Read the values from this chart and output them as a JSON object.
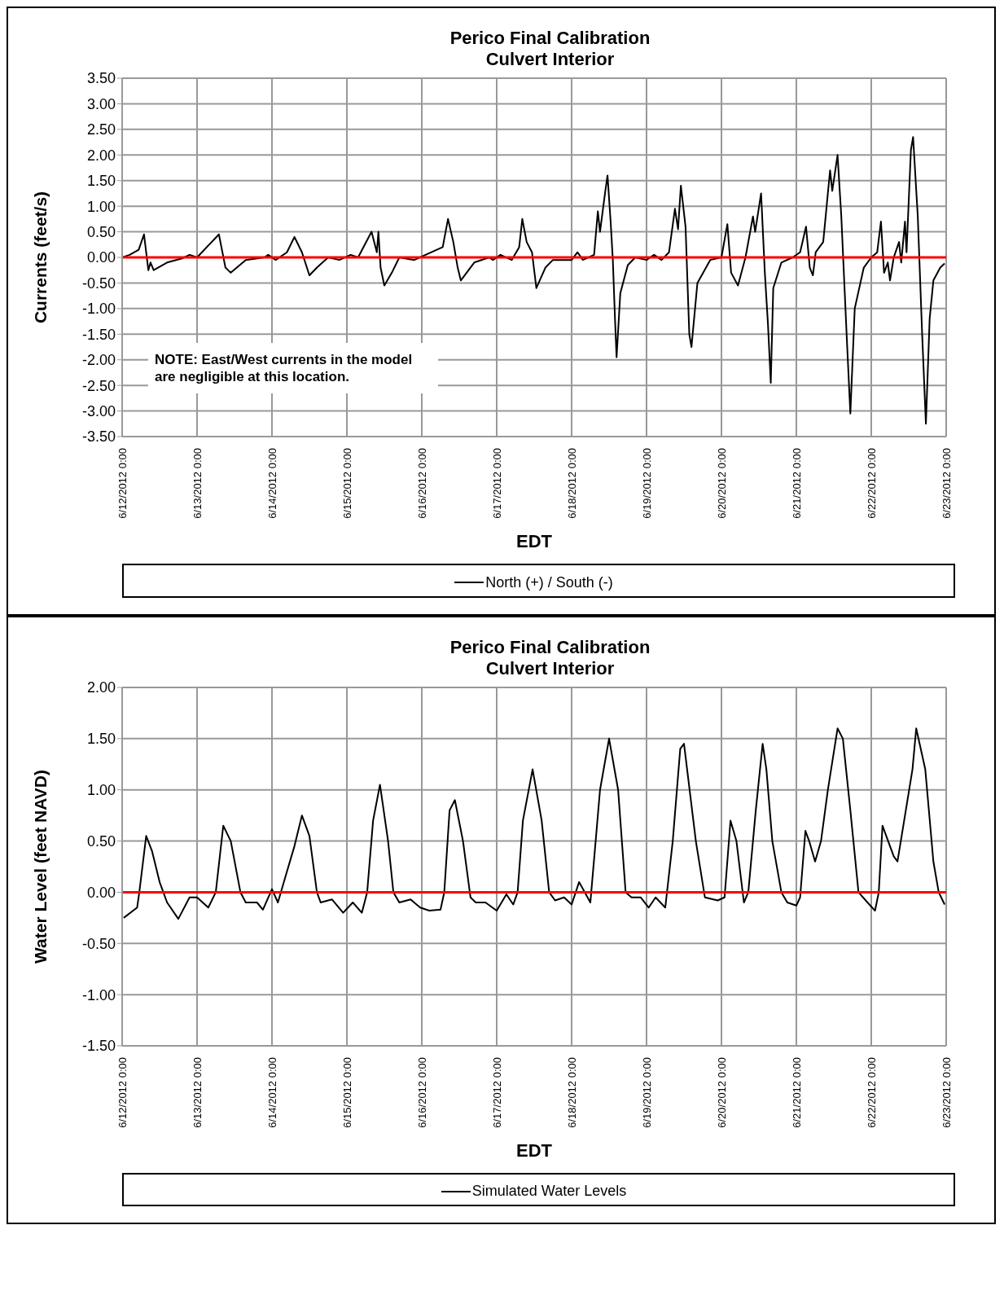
{
  "chart_data": [
    {
      "type": "line",
      "title": "Perico Final Calibration",
      "subtitle": "Culvert Interior",
      "xlabel": "EDT",
      "ylabel": "Currents (feet/s)",
      "annotations": [
        "NOTE:  East/West currents in the model are negligible at this location."
      ],
      "xlim": [
        "2012-06-12T00:00",
        "2012-06-23T00:00"
      ],
      "xticks": [
        {
          "value": "2012-06-12T00:00",
          "label": "6/12/2012 0:00"
        },
        {
          "value": "2012-06-13T00:00",
          "label": "6/13/2012 0:00"
        },
        {
          "value": "2012-06-14T00:00",
          "label": "6/14/2012 0:00"
        },
        {
          "value": "2012-06-15T00:00",
          "label": "6/15/2012 0:00"
        },
        {
          "value": "2012-06-16T00:00",
          "label": "6/16/2012 0:00"
        },
        {
          "value": "2012-06-17T00:00",
          "label": "6/17/2012 0:00"
        },
        {
          "value": "2012-06-18T00:00",
          "label": "6/18/2012 0:00"
        },
        {
          "value": "2012-06-19T00:00",
          "label": "6/19/2012 0:00"
        },
        {
          "value": "2012-06-20T00:00",
          "label": "6/20/2012 0:00"
        },
        {
          "value": "2012-06-21T00:00",
          "label": "6/21/2012 0:00"
        },
        {
          "value": "2012-06-22T00:00",
          "label": "6/22/2012 0:00"
        },
        {
          "value": "2012-06-23T00:00",
          "label": "6/23/2012 0:00"
        }
      ],
      "ylim": [
        -3.5,
        3.5
      ],
      "yticks": [
        {
          "value": 3.5,
          "label": "3.50"
        },
        {
          "value": 3,
          "label": "3.00"
        },
        {
          "value": 2.5,
          "label": "2.50"
        },
        {
          "value": 2,
          "label": "2.00"
        },
        {
          "value": 1.5,
          "label": "1.50"
        },
        {
          "value": 1,
          "label": "1.00"
        },
        {
          "value": 0.5,
          "label": "0.50"
        },
        {
          "value": 0,
          "label": "0.00"
        },
        {
          "value": -0.5,
          "label": "-0.50"
        },
        {
          "value": -1,
          "label": "-1.00"
        },
        {
          "value": -1.5,
          "label": "-1.50"
        },
        {
          "value": -2,
          "label": "-2.00"
        },
        {
          "value": -2.5,
          "label": "-2.50"
        },
        {
          "value": -3,
          "label": "-3.00"
        },
        {
          "value": -3.5,
          "label": "-3.50"
        }
      ],
      "grid": true,
      "legend": "bottom",
      "marker": "none",
      "line_style": "solid",
      "ref_lines": [
        {
          "axis": "y",
          "value": 0,
          "color": "#ff0000"
        }
      ],
      "series": [
        {
          "name": "North (+) / South (-)",
          "color": "#000000",
          "x": [
            "2012-06-12T00:00",
            "2012-06-12T02:24",
            "2012-06-12T05:18",
            "2012-06-12T07:00",
            "2012-06-12T08:24",
            "2012-06-12T09:06",
            "2012-06-12T10:06",
            "2012-06-12T14:24",
            "2012-06-12T19:12",
            "2012-06-12T21:36",
            "2012-06-13T00:00",
            "2012-06-13T07:00",
            "2012-06-13T09:06",
            "2012-06-13T10:48",
            "2012-06-13T15:36",
            "2012-06-13T21:36",
            "2012-06-13T22:48",
            "2012-06-14T01:12",
            "2012-06-14T04:48",
            "2012-06-14T07:12",
            "2012-06-14T09:36",
            "2012-06-14T12:00",
            "2012-06-14T14:24",
            "2012-06-14T18:00",
            "2012-06-14T21:36",
            "2012-06-15T01:12",
            "2012-06-15T03:36",
            "2012-06-15T07:54",
            "2012-06-15T09:36",
            "2012-06-15T10:06",
            "2012-06-15T10:48",
            "2012-06-15T12:00",
            "2012-06-15T14:24",
            "2012-06-15T16:48",
            "2012-06-15T21:36",
            "2012-06-16T01:12",
            "2012-06-16T06:42",
            "2012-06-16T08:24",
            "2012-06-16T10:06",
            "2012-06-16T11:30",
            "2012-06-16T12:30",
            "2012-06-16T16:48",
            "2012-06-16T21:36",
            "2012-06-16T22:48",
            "2012-06-17T01:12",
            "2012-06-17T04:48",
            "2012-06-17T07:12",
            "2012-06-17T08:12",
            "2012-06-17T09:36",
            "2012-06-17T11:18",
            "2012-06-17T12:42",
            "2012-06-17T15:36",
            "2012-06-17T18:00",
            "2012-06-18T00:00",
            "2012-06-18T01:54",
            "2012-06-18T03:36",
            "2012-06-18T07:12",
            "2012-06-18T08:24",
            "2012-06-18T09:06",
            "2012-06-18T10:48",
            "2012-06-18T11:30",
            "2012-06-18T12:30",
            "2012-06-18T13:12",
            "2012-06-18T13:54",
            "2012-06-18T14:24",
            "2012-06-18T15:36",
            "2012-06-18T18:00",
            "2012-06-18T20:24",
            "2012-06-19T00:00",
            "2012-06-19T02:24",
            "2012-06-19T04:48",
            "2012-06-19T07:12",
            "2012-06-19T09:06",
            "2012-06-19T10:06",
            "2012-06-19T11:00",
            "2012-06-19T12:30",
            "2012-06-19T13:42",
            "2012-06-19T14:24",
            "2012-06-19T16:18",
            "2012-06-19T20:24",
            "2012-06-20T00:00",
            "2012-06-20T01:54",
            "2012-06-20T03:06",
            "2012-06-20T05:18",
            "2012-06-20T07:42",
            "2012-06-20T10:06",
            "2012-06-20T10:48",
            "2012-06-20T12:42",
            "2012-06-20T13:54",
            "2012-06-20T14:54",
            "2012-06-20T15:48",
            "2012-06-20T16:36",
            "2012-06-20T19:12",
            "2012-06-20T22:48",
            "2012-06-21T01:12",
            "2012-06-21T03:06",
            "2012-06-21T04:18",
            "2012-06-21T05:18",
            "2012-06-21T06:12",
            "2012-06-21T08:36",
            "2012-06-21T10:48",
            "2012-06-21T11:30",
            "2012-06-21T13:12",
            "2012-06-21T14:24",
            "2012-06-21T16:06",
            "2012-06-21T17:18",
            "2012-06-21T18:42",
            "2012-06-21T21:36",
            "2012-06-22T00:00",
            "2012-06-22T01:54",
            "2012-06-22T03:06",
            "2012-06-22T04:06",
            "2012-06-22T05:18",
            "2012-06-22T06:00",
            "2012-06-22T07:12",
            "2012-06-22T08:54",
            "2012-06-22T09:36",
            "2012-06-22T10:48",
            "2012-06-22T11:18",
            "2012-06-22T12:42",
            "2012-06-22T13:24",
            "2012-06-22T14:54",
            "2012-06-22T16:18",
            "2012-06-22T17:30",
            "2012-06-22T18:42",
            "2012-06-22T19:54",
            "2012-06-22T22:06",
            "2012-06-22T23:30"
          ],
          "values": [
            0,
            0.05,
            0.15,
            0.45,
            -0.25,
            -0.1,
            -0.25,
            -0.1,
            -0.02,
            0.05,
            0,
            0.45,
            -0.2,
            -0.3,
            -0.05,
            0,
            0.05,
            -0.05,
            0.1,
            0.4,
            0.1,
            -0.35,
            -0.2,
            0,
            -0.05,
            0.05,
            0,
            0.5,
            0.1,
            0.5,
            -0.2,
            -0.55,
            -0.3,
            0,
            -0.05,
            0.05,
            0.2,
            0.75,
            0.3,
            -0.2,
            -0.45,
            -0.1,
            0,
            -0.05,
            0.05,
            -0.05,
            0.2,
            0.75,
            0.3,
            0.1,
            -0.6,
            -0.2,
            -0.05,
            -0.05,
            0.1,
            -0.05,
            0.05,
            0.9,
            0.5,
            1.3,
            1.6,
            0.7,
            -0.05,
            -1.2,
            -1.95,
            -0.7,
            -0.15,
            0,
            -0.05,
            0.05,
            -0.05,
            0.1,
            0.95,
            0.55,
            1.4,
            0.6,
            -1.5,
            -1.75,
            -0.5,
            -0.05,
            0,
            0.65,
            -0.3,
            -0.55,
            0,
            0.8,
            0.5,
            1.25,
            -0.3,
            -1.3,
            -2.45,
            -0.6,
            -0.1,
            0,
            0.1,
            0.6,
            -0.2,
            -0.35,
            0.1,
            0.3,
            1.7,
            1.3,
            2.0,
            0.8,
            -1.5,
            -3.05,
            -1.0,
            -0.2,
            0,
            0.1,
            0.7,
            -0.3,
            -0.1,
            -0.45,
            0,
            0.3,
            -0.1,
            0.7,
            0.1,
            2.1,
            2.35,
            0.8,
            -1.5,
            -3.25,
            -1.2,
            -0.45,
            -0.2,
            -0.12
          ]
        }
      ]
    },
    {
      "type": "line",
      "title": "Perico Final Calibration",
      "subtitle": "Culvert Interior",
      "xlabel": "EDT",
      "ylabel": "Water Level (feet NAVD)",
      "xlim": [
        "2012-06-12T00:00",
        "2012-06-23T00:00"
      ],
      "xticks": [
        {
          "value": "2012-06-12T00:00",
          "label": "6/12/2012 0:00"
        },
        {
          "value": "2012-06-13T00:00",
          "label": "6/13/2012 0:00"
        },
        {
          "value": "2012-06-14T00:00",
          "label": "6/14/2012 0:00"
        },
        {
          "value": "2012-06-15T00:00",
          "label": "6/15/2012 0:00"
        },
        {
          "value": "2012-06-16T00:00",
          "label": "6/16/2012 0:00"
        },
        {
          "value": "2012-06-17T00:00",
          "label": "6/17/2012 0:00"
        },
        {
          "value": "2012-06-18T00:00",
          "label": "6/18/2012 0:00"
        },
        {
          "value": "2012-06-19T00:00",
          "label": "6/19/2012 0:00"
        },
        {
          "value": "2012-06-20T00:00",
          "label": "6/20/2012 0:00"
        },
        {
          "value": "2012-06-21T00:00",
          "label": "6/21/2012 0:00"
        },
        {
          "value": "2012-06-22T00:00",
          "label": "6/22/2012 0:00"
        },
        {
          "value": "2012-06-23T00:00",
          "label": "6/23/2012 0:00"
        }
      ],
      "ylim": [
        -1.5,
        2
      ],
      "yticks": [
        {
          "value": 2,
          "label": "2.00"
        },
        {
          "value": 1.5,
          "label": "1.50"
        },
        {
          "value": 1,
          "label": "1.00"
        },
        {
          "value": 0.5,
          "label": "0.50"
        },
        {
          "value": 0,
          "label": "0.00"
        },
        {
          "value": -0.5,
          "label": "-0.50"
        },
        {
          "value": -1,
          "label": "-1.00"
        },
        {
          "value": -1.5,
          "label": "-1.50"
        }
      ],
      "grid": true,
      "legend": "bottom",
      "marker": "none",
      "line_style": "solid",
      "ref_lines": [
        {
          "axis": "y",
          "value": 0,
          "color": "#ff0000"
        }
      ],
      "series": [
        {
          "name": "Simulated Water Levels",
          "color": "#000000",
          "x": [
            "2012-06-12T00:30",
            "2012-06-12T04:48",
            "2012-06-12T05:30",
            "2012-06-12T07:42",
            "2012-06-12T09:36",
            "2012-06-12T12:00",
            "2012-06-12T14:24",
            "2012-06-12T18:00",
            "2012-06-12T21:36",
            "2012-06-13T00:00",
            "2012-06-13T03:36",
            "2012-06-13T06:00",
            "2012-06-13T08:24",
            "2012-06-13T10:48",
            "2012-06-13T13:54",
            "2012-06-13T15:36",
            "2012-06-13T19:12",
            "2012-06-13T21:06",
            "2012-06-14T00:00",
            "2012-06-14T01:54",
            "2012-06-14T04:18",
            "2012-06-14T07:12",
            "2012-06-14T09:36",
            "2012-06-14T12:00",
            "2012-06-14T14:24",
            "2012-06-14T15:36",
            "2012-06-14T19:12",
            "2012-06-14T22:48",
            "2012-06-15T01:54",
            "2012-06-15T04:48",
            "2012-06-15T06:30",
            "2012-06-15T08:24",
            "2012-06-15T10:36",
            "2012-06-15T13:12",
            "2012-06-15T14:54",
            "2012-06-15T16:48",
            "2012-06-15T20:24",
            "2012-06-15T23:30",
            "2012-06-16T02:24",
            "2012-06-16T06:00",
            "2012-06-16T07:12",
            "2012-06-16T08:54",
            "2012-06-16T10:36",
            "2012-06-16T13:12",
            "2012-06-16T15:36",
            "2012-06-16T17:18",
            "2012-06-16T20:24",
            "2012-06-17T00:00",
            "2012-06-17T03:06",
            "2012-06-17T05:18",
            "2012-06-17T06:42",
            "2012-06-17T08:24",
            "2012-06-17T11:30",
            "2012-06-17T14:24",
            "2012-06-17T16:48",
            "2012-06-17T18:42",
            "2012-06-17T21:36",
            "2012-06-18T00:00",
            "2012-06-18T02:24",
            "2012-06-18T06:00",
            "2012-06-18T07:42",
            "2012-06-18T09:06",
            "2012-06-18T12:00",
            "2012-06-18T14:54",
            "2012-06-18T17:18",
            "2012-06-18T19:12",
            "2012-06-18T22:06",
            "2012-06-19T00:42",
            "2012-06-19T02:54",
            "2012-06-19T06:00",
            "2012-06-19T08:24",
            "2012-06-19T10:48",
            "2012-06-19T12:00",
            "2012-06-19T15:48",
            "2012-06-19T18:42",
            "2012-06-19T22:48",
            "2012-06-20T01:00",
            "2012-06-20T02:54",
            "2012-06-20T04:48",
            "2012-06-20T07:12",
            "2012-06-20T08:36",
            "2012-06-20T11:00",
            "2012-06-20T13:12",
            "2012-06-20T14:24",
            "2012-06-20T16:18",
            "2012-06-20T19:12",
            "2012-06-20T21:06",
            "2012-06-21T00:00",
            "2012-06-21T01:12",
            "2012-06-21T02:54",
            "2012-06-21T04:06",
            "2012-06-21T06:00",
            "2012-06-21T07:54",
            "2012-06-21T10:06",
            "2012-06-21T13:12",
            "2012-06-21T14:54",
            "2012-06-21T17:18",
            "2012-06-21T19:54",
            "2012-06-21T22:48",
            "2012-06-22T01:12",
            "2012-06-22T02:24",
            "2012-06-22T03:36",
            "2012-06-22T04:48",
            "2012-06-22T07:12",
            "2012-06-22T08:24",
            "2012-06-22T10:48",
            "2012-06-22T13:12",
            "2012-06-22T14:24",
            "2012-06-22T17:18",
            "2012-06-22T19:54",
            "2012-06-22T21:36",
            "2012-06-22T23:30"
          ],
          "values": [
            -0.25,
            -0.15,
            0,
            0.55,
            0.4,
            0.1,
            -0.1,
            -0.26,
            -0.05,
            -0.05,
            -0.15,
            0,
            0.65,
            0.5,
            0,
            -0.1,
            -0.1,
            -0.17,
            0.03,
            -0.1,
            0.15,
            0.45,
            0.75,
            0.55,
            0,
            -0.1,
            -0.07,
            -0.2,
            -0.1,
            -0.2,
            0,
            0.7,
            1.05,
            0.5,
            0,
            -0.1,
            -0.07,
            -0.15,
            -0.18,
            -0.17,
            0,
            0.8,
            0.9,
            0.5,
            -0.05,
            -0.1,
            -0.1,
            -0.18,
            -0.02,
            -0.12,
            0,
            0.7,
            1.2,
            0.7,
            0,
            -0.08,
            -0.05,
            -0.12,
            0.1,
            -0.1,
            0.5,
            1.0,
            1.5,
            1.0,
            0,
            -0.05,
            -0.05,
            -0.15,
            -0.05,
            -0.15,
            0.5,
            1.4,
            1.45,
            0.5,
            -0.05,
            -0.08,
            -0.05,
            0.7,
            0.5,
            -0.1,
            0,
            0.8,
            1.45,
            1.2,
            0.5,
            0,
            -0.1,
            -0.13,
            -0.05,
            0.6,
            0.5,
            0.3,
            0.5,
            1.0,
            1.6,
            1.5,
            0.8,
            0,
            -0.1,
            -0.18,
            0,
            0.65,
            0.55,
            0.35,
            0.3,
            0.75,
            1.2,
            1.6,
            1.2,
            0.3,
            0,
            -0.12
          ]
        }
      ]
    }
  ]
}
